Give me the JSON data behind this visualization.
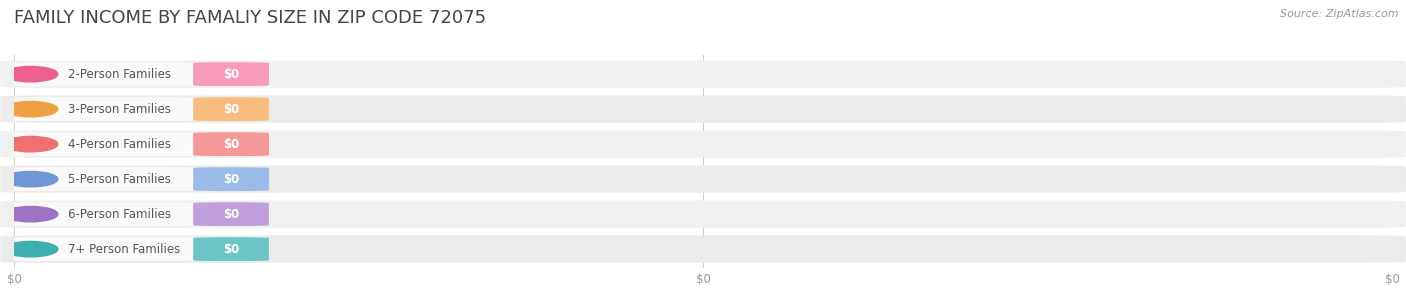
{
  "title": "FAMILY INCOME BY FAMALIY SIZE IN ZIP CODE 72075",
  "source": "Source: ZipAtlas.com",
  "categories": [
    "2-Person Families",
    "3-Person Families",
    "4-Person Families",
    "5-Person Families",
    "6-Person Families",
    "7+ Person Families"
  ],
  "values": [
    0,
    0,
    0,
    0,
    0,
    0
  ],
  "bar_colors": [
    "#F79BB8",
    "#F8BD7E",
    "#F59898",
    "#9BBCE8",
    "#C0A0DC",
    "#6DC4C4"
  ],
  "dot_colors": [
    "#EF5F8E",
    "#F0A040",
    "#EF7070",
    "#6E96D4",
    "#9B74C6",
    "#3DAFAF"
  ],
  "background_color": "#FFFFFF",
  "row_bg_color": "#EFEFEF",
  "row_bg_color_alt": "#E8E8E8",
  "label_pill_bg": "#F5F5F5",
  "label_text_color": "#555555",
  "value_label": "$0",
  "title_fontsize": 13,
  "source_fontsize": 8,
  "label_fontsize": 8.5,
  "value_fontsize": 8.5,
  "xtick_labels": [
    "$0",
    "$0",
    "$0"
  ],
  "xtick_positions": [
    0.0,
    0.5,
    1.0
  ]
}
